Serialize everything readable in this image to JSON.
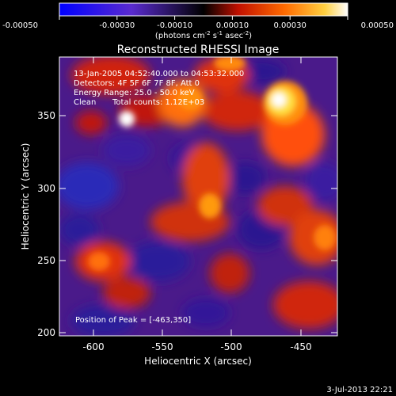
{
  "figure": {
    "title": "Reconstructed RHESSI Image",
    "colorbar": {
      "unit_main": "(photons cm",
      "unit_sup1": "-2",
      "unit_mid": " s",
      "unit_sup2": "-1",
      "unit_mid2": " asec",
      "unit_sup3": "-2",
      "unit_end": ")",
      "range": [
        -0.0005,
        0.0005
      ],
      "ticks": [
        "-0.00050",
        "-0.00030",
        "-0.00010",
        "0.00010",
        "0.00030",
        "0.00050"
      ]
    },
    "info": {
      "time_range": "13-Jan-2005 04:52:40.000 to 04:53:32.000",
      "detectors": "Detectors: 4F 5F 6F 7F 8F, Att 0",
      "energy": "Energy Range: 25.0 - 50.0 keV",
      "method": "Clean",
      "counts": "Total counts: 1.12E+03",
      "peak": "Position of Peak = [-463,350]"
    },
    "x_axis": {
      "label": "Heliocentric X (arcsec)",
      "ticks": [
        "-600",
        "-550",
        "-500",
        "-450"
      ],
      "range": [
        -620,
        -428
      ]
    },
    "y_axis": {
      "label": "Heliocentric Y (arcsec)",
      "ticks": [
        "350",
        "300",
        "250",
        "200"
      ],
      "range": [
        197,
        390
      ]
    },
    "timestamp": "3-Jul-2013 22:21"
  }
}
